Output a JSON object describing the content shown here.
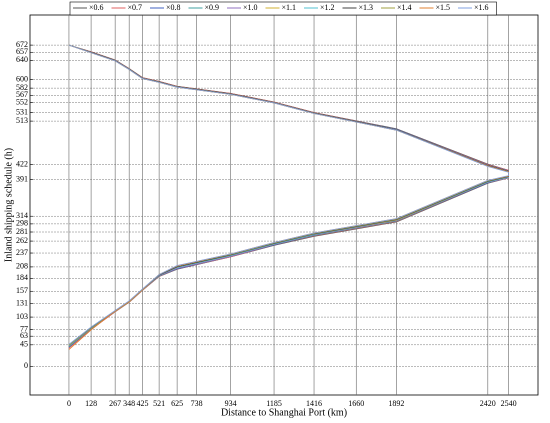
{
  "chart_data": {
    "type": "line",
    "x_label": "Distance to Shanghai Port (km)",
    "y_label": "Inland shipping schedule (h)",
    "x": [
      0,
      128,
      267,
      348,
      425,
      521,
      625,
      934,
      1185,
      1416,
      1892,
      2420,
      2540,
      2540,
      2420,
      1892,
      1416,
      1185,
      934,
      625,
      521,
      425,
      348,
      267,
      128,
      0
    ],
    "xlim": [
      -225,
      2710
    ],
    "xticks": [
      0,
      128,
      267,
      348,
      425,
      521,
      625,
      738,
      934,
      1185,
      1416,
      1660,
      1892,
      2420,
      2540
    ],
    "ylim": [
      -60,
      735
    ],
    "yticks": [
      0,
      45,
      63,
      77,
      103,
      131,
      157,
      184,
      208,
      237,
      262,
      281,
      298,
      314,
      391,
      422,
      513,
      531,
      552,
      567,
      582,
      600,
      640,
      657,
      672
    ],
    "grid": true,
    "legend": "top",
    "series": [
      {
        "name": "×0.6",
        "color": "#555555",
        "values": [
          40,
          78,
          114,
          134,
          159,
          188,
          203,
          229,
          253,
          272,
          302,
          383,
          394,
          410,
          423,
          497,
          531,
          553,
          571,
          586,
          596,
          604,
          623,
          641,
          658,
          672
        ]
      },
      {
        "name": "×0.7",
        "color": "#e06060",
        "values": [
          38,
          77,
          114,
          134,
          159,
          188,
          204,
          229,
          254,
          273,
          303,
          384,
          394,
          410,
          422,
          496,
          531,
          553,
          571,
          586,
          596,
          604,
          623,
          641,
          658,
          672
        ]
      },
      {
        "name": "×0.8",
        "color": "#4060c0",
        "values": [
          40,
          79,
          115,
          135,
          160,
          189,
          204,
          230,
          254,
          274,
          304,
          384,
          395,
          409,
          421,
          496,
          530,
          552,
          570,
          585,
          595,
          603,
          622,
          640,
          657,
          672
        ]
      },
      {
        "name": "×0.9",
        "color": "#40a0a0",
        "values": [
          41,
          79,
          115,
          135,
          160,
          189,
          205,
          230,
          255,
          274,
          304,
          385,
          395,
          408,
          420,
          495,
          530,
          552,
          570,
          585,
          595,
          603,
          622,
          640,
          657,
          672
        ]
      },
      {
        "name": "×1.0",
        "color": "#9070c0",
        "values": [
          42,
          80,
          115,
          135,
          160,
          190,
          205,
          230,
          255,
          275,
          305,
          385,
          395,
          408,
          420,
          495,
          530,
          552,
          570,
          585,
          595,
          603,
          622,
          640,
          657,
          672
        ]
      },
      {
        "name": "×1.1",
        "color": "#d0b030",
        "values": [
          43,
          80,
          115,
          135,
          160,
          191,
          207,
          232,
          256,
          276,
          306,
          386,
          396,
          408,
          420,
          495,
          530,
          552,
          570,
          585,
          595,
          603,
          622,
          640,
          657,
          672
        ]
      },
      {
        "name": "×1.2",
        "color": "#50c0d0",
        "values": [
          43,
          81,
          116,
          136,
          161,
          191,
          207,
          232,
          256,
          276,
          307,
          386,
          396,
          408,
          420,
          495,
          530,
          552,
          570,
          585,
          595,
          603,
          622,
          640,
          657,
          672
        ]
      },
      {
        "name": "×1.3",
        "color": "#404040",
        "values": [
          44,
          81,
          116,
          136,
          161,
          191,
          208,
          233,
          257,
          277,
          307,
          387,
          397,
          408,
          420,
          495,
          530,
          552,
          570,
          585,
          595,
          603,
          622,
          640,
          657,
          672
        ]
      },
      {
        "name": "×1.4",
        "color": "#a0a040",
        "values": [
          44,
          82,
          116,
          136,
          161,
          192,
          210,
          234,
          258,
          278,
          308,
          388,
          398,
          407,
          419,
          494,
          529,
          551,
          569,
          584,
          594,
          602,
          621,
          639,
          656,
          672
        ]
      },
      {
        "name": "×1.5",
        "color": "#e08030",
        "values": [
          35,
          76,
          116,
          136,
          161,
          192,
          210,
          235,
          259,
          279,
          309,
          389,
          398,
          407,
          419,
          494,
          529,
          551,
          569,
          584,
          594,
          602,
          621,
          639,
          656,
          672
        ]
      },
      {
        "name": "×1.6",
        "color": "#80a0e0",
        "values": [
          46,
          82,
          117,
          137,
          162,
          192,
          211,
          235,
          259,
          279,
          309,
          389,
          399,
          406,
          418,
          494,
          529,
          551,
          569,
          584,
          594,
          602,
          621,
          639,
          656,
          672
        ]
      }
    ]
  }
}
